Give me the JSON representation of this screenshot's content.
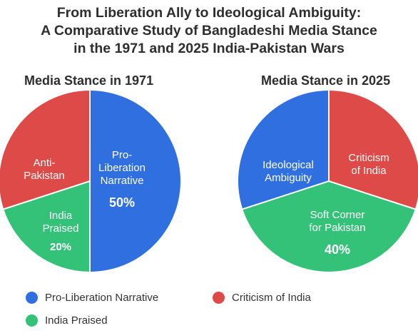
{
  "title_lines": [
    "From Liberation Ally to Ideological Ambiguity:",
    "A Comparative Study of Bangladeshi Media Stance",
    "in the 1971 and 2025 India-Pakistan Wars"
  ],
  "colors": {
    "blue": "#2f6fe0",
    "red": "#de4a47",
    "green": "#34c178"
  },
  "legend": [
    {
      "label": "Pro-Liberation Narrative",
      "color": "#2f6fe0"
    },
    {
      "label": "Criticism of India",
      "color": "#de4a47"
    },
    {
      "label": "India Praised",
      "color": "#34c178"
    }
  ],
  "chart_data": [
    {
      "type": "pie",
      "title": "Media Stance in 1971",
      "slices": [
        {
          "label": [
            "Pro-",
            "Liberation",
            "Narrative"
          ],
          "value": 50,
          "pct_label": "50%",
          "color": "#2f6fe0"
        },
        {
          "label": [
            "India",
            "Praised"
          ],
          "value": 20,
          "pct_label": "20%",
          "color": "#34c178"
        },
        {
          "label": [
            "Anti-",
            "Pakistan"
          ],
          "value": 30,
          "pct_label": "",
          "color": "#de4a47"
        }
      ]
    },
    {
      "type": "pie",
      "title": "Media Stance in 2025",
      "slices": [
        {
          "label": [
            "Criticism",
            "of India"
          ],
          "value": 30,
          "pct_label": "",
          "color": "#de4a47"
        },
        {
          "label": [
            "Soft Corner",
            "for Pakistan"
          ],
          "value": 40,
          "pct_label": "40%",
          "color": "#34c178"
        },
        {
          "label": [
            "Ideological",
            "Ambiguity"
          ],
          "value": 30,
          "pct_label": "",
          "color": "#2f6fe0"
        }
      ]
    }
  ]
}
